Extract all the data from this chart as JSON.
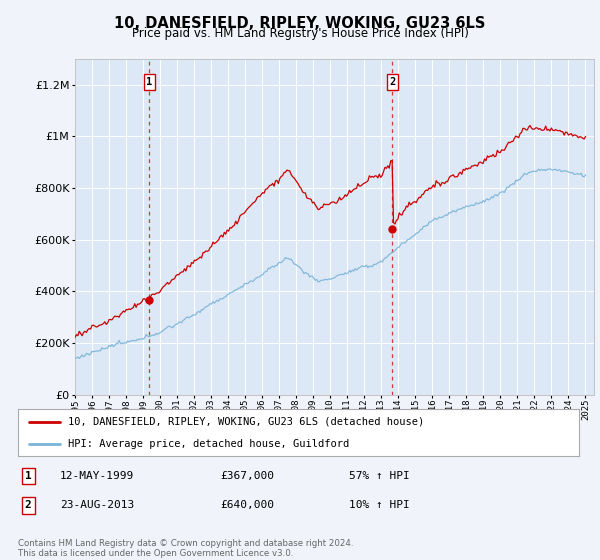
{
  "title": "10, DANESFIELD, RIPLEY, WOKING, GU23 6LS",
  "subtitle": "Price paid vs. HM Land Registry's House Price Index (HPI)",
  "background_color": "#f0f4fa",
  "plot_bg_color": "#dce8f5",
  "purchase1_date_num": 1999.37,
  "purchase1_price": 367000,
  "purchase2_date_num": 2013.65,
  "purchase2_price": 640000,
  "legend_line1": "10, DANESFIELD, RIPLEY, WOKING, GU23 6LS (detached house)",
  "legend_line2": "HPI: Average price, detached house, Guildford",
  "footer": "Contains HM Land Registry data © Crown copyright and database right 2024.\nThis data is licensed under the Open Government Licence v3.0.",
  "hpi_color": "#7ab4d8",
  "price_color": "#cc0000",
  "ylim_min": 0,
  "ylim_max": 1300000,
  "xmin": 1995.0,
  "xmax": 2025.5
}
